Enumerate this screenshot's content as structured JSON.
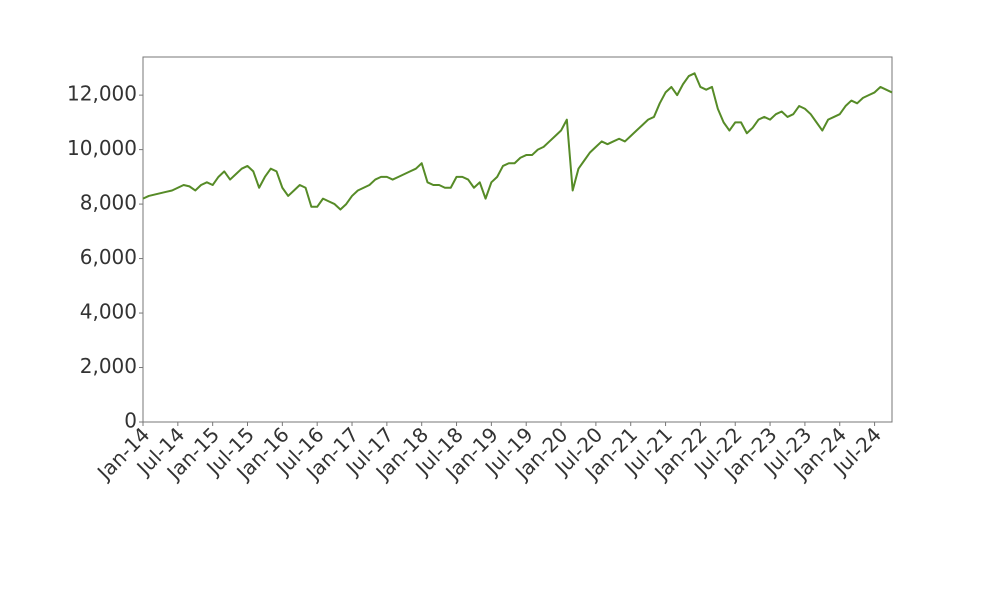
{
  "chart_data": {
    "type": "line",
    "x": [
      "2014-01",
      "2014-02",
      "2014-03",
      "2014-04",
      "2014-05",
      "2014-06",
      "2014-07",
      "2014-08",
      "2014-09",
      "2014-10",
      "2014-11",
      "2014-12",
      "2015-01",
      "2015-02",
      "2015-03",
      "2015-04",
      "2015-05",
      "2015-06",
      "2015-07",
      "2015-08",
      "2015-09",
      "2015-10",
      "2015-11",
      "2015-12",
      "2016-01",
      "2016-02",
      "2016-03",
      "2016-04",
      "2016-05",
      "2016-06",
      "2016-07",
      "2016-08",
      "2016-09",
      "2016-10",
      "2016-11",
      "2016-12",
      "2017-01",
      "2017-02",
      "2017-03",
      "2017-04",
      "2017-05",
      "2017-06",
      "2017-07",
      "2017-08",
      "2017-09",
      "2017-10",
      "2017-11",
      "2017-12",
      "2018-01",
      "2018-02",
      "2018-03",
      "2018-04",
      "2018-05",
      "2018-06",
      "2018-07",
      "2018-08",
      "2018-09",
      "2018-10",
      "2018-11",
      "2018-12",
      "2019-01",
      "2019-02",
      "2019-03",
      "2019-04",
      "2019-05",
      "2019-06",
      "2019-07",
      "2019-08",
      "2019-09",
      "2019-10",
      "2019-11",
      "2019-12",
      "2020-01",
      "2020-02",
      "2020-03",
      "2020-04",
      "2020-05",
      "2020-06",
      "2020-07",
      "2020-08",
      "2020-09",
      "2020-10",
      "2020-11",
      "2020-12",
      "2021-01",
      "2021-02",
      "2021-03",
      "2021-04",
      "2021-05",
      "2021-06",
      "2021-07",
      "2021-08",
      "2021-09",
      "2021-10",
      "2021-11",
      "2021-12",
      "2022-01",
      "2022-02",
      "2022-03",
      "2022-04",
      "2022-05",
      "2022-06",
      "2022-07",
      "2022-08",
      "2022-09",
      "2022-10",
      "2022-11",
      "2022-12",
      "2023-01",
      "2023-02",
      "2023-03",
      "2023-04",
      "2023-05",
      "2023-06",
      "2023-07",
      "2023-08",
      "2023-09",
      "2023-10",
      "2023-11",
      "2023-12",
      "2024-01",
      "2024-02",
      "2024-03",
      "2024-04",
      "2024-05",
      "2024-06",
      "2024-07",
      "2024-08",
      "2024-09",
      "2024-10"
    ],
    "series": [
      {
        "color": "#568b27",
        "values": [
          8200,
          8300,
          8350,
          8400,
          8450,
          8500,
          8600,
          8700,
          8650,
          8500,
          8700,
          8800,
          8700,
          9000,
          9200,
          8900,
          9100,
          9300,
          9400,
          9200,
          8600,
          9000,
          9300,
          9200,
          8600,
          8300,
          8500,
          8700,
          8600,
          7900,
          7900,
          8200,
          8100,
          8000,
          7800,
          8000,
          8300,
          8500,
          8600,
          8700,
          8900,
          9000,
          9000,
          8900,
          9000,
          9100,
          9200,
          9300,
          9500,
          8800,
          8700,
          8700,
          8600,
          8600,
          9000,
          9000,
          8900,
          8600,
          8800,
          8200,
          8800,
          9000,
          9400,
          9500,
          9500,
          9700,
          9800,
          9800,
          10000,
          10100,
          10300,
          10500,
          10700,
          11100,
          8500,
          9300,
          9600,
          9900,
          10100,
          10300,
          10200,
          10300,
          10400,
          10300,
          10500,
          10700,
          10900,
          11100,
          11200,
          11700,
          12100,
          12300,
          12000,
          12400,
          12700,
          12800,
          12300,
          12200,
          12300,
          11500,
          11000,
          10700,
          11000,
          11000,
          10600,
          10800,
          11100,
          11200,
          11100,
          11300,
          11400,
          11200,
          11300,
          11600,
          11500,
          11300,
          11000,
          10700,
          11100,
          11200,
          11300,
          11600,
          11800,
          11700,
          11900,
          12000,
          12100,
          12300,
          12200,
          12100
        ]
      }
    ],
    "xlim": [
      "2014-01",
      "2024-10"
    ],
    "xticks": [
      {
        "value": "2014-01",
        "label": "Jan-14"
      },
      {
        "value": "2014-07",
        "label": "Jul-14"
      },
      {
        "value": "2015-01",
        "label": "Jan-15"
      },
      {
        "value": "2015-07",
        "label": "Jul-15"
      },
      {
        "value": "2016-01",
        "label": "Jan-16"
      },
      {
        "value": "2016-07",
        "label": "Jul-16"
      },
      {
        "value": "2017-01",
        "label": "Jan-17"
      },
      {
        "value": "2017-07",
        "label": "Jul-17"
      },
      {
        "value": "2018-01",
        "label": "Jan-18"
      },
      {
        "value": "2018-07",
        "label": "Jul-18"
      },
      {
        "value": "2019-01",
        "label": "Jan-19"
      },
      {
        "value": "2019-07",
        "label": "Jul-19"
      },
      {
        "value": "2020-01",
        "label": "Jan-20"
      },
      {
        "value": "2020-07",
        "label": "Jul-20"
      },
      {
        "value": "2021-01",
        "label": "Jan-21"
      },
      {
        "value": "2021-07",
        "label": "Jul-21"
      },
      {
        "value": "2022-01",
        "label": "Jan-22"
      },
      {
        "value": "2022-07",
        "label": "Jul-22"
      },
      {
        "value": "2023-01",
        "label": "Jan-23"
      },
      {
        "value": "2023-07",
        "label": "Jul-23"
      },
      {
        "value": "2024-01",
        "label": "Jan-24"
      },
      {
        "value": "2024-07",
        "label": "Jul-24"
      }
    ],
    "ylim": [
      0,
      13400
    ],
    "yticks": [
      0,
      {
        "value": 2000,
        "label": "2,000"
      },
      {
        "value": 4000,
        "label": "4,000"
      },
      {
        "value": 6000,
        "label": "6,000"
      },
      {
        "value": 8000,
        "label": "8,000"
      },
      {
        "value": 10000,
        "label": "10,000"
      },
      {
        "value": 12000,
        "label": "12,000"
      }
    ],
    "grid": false
  }
}
